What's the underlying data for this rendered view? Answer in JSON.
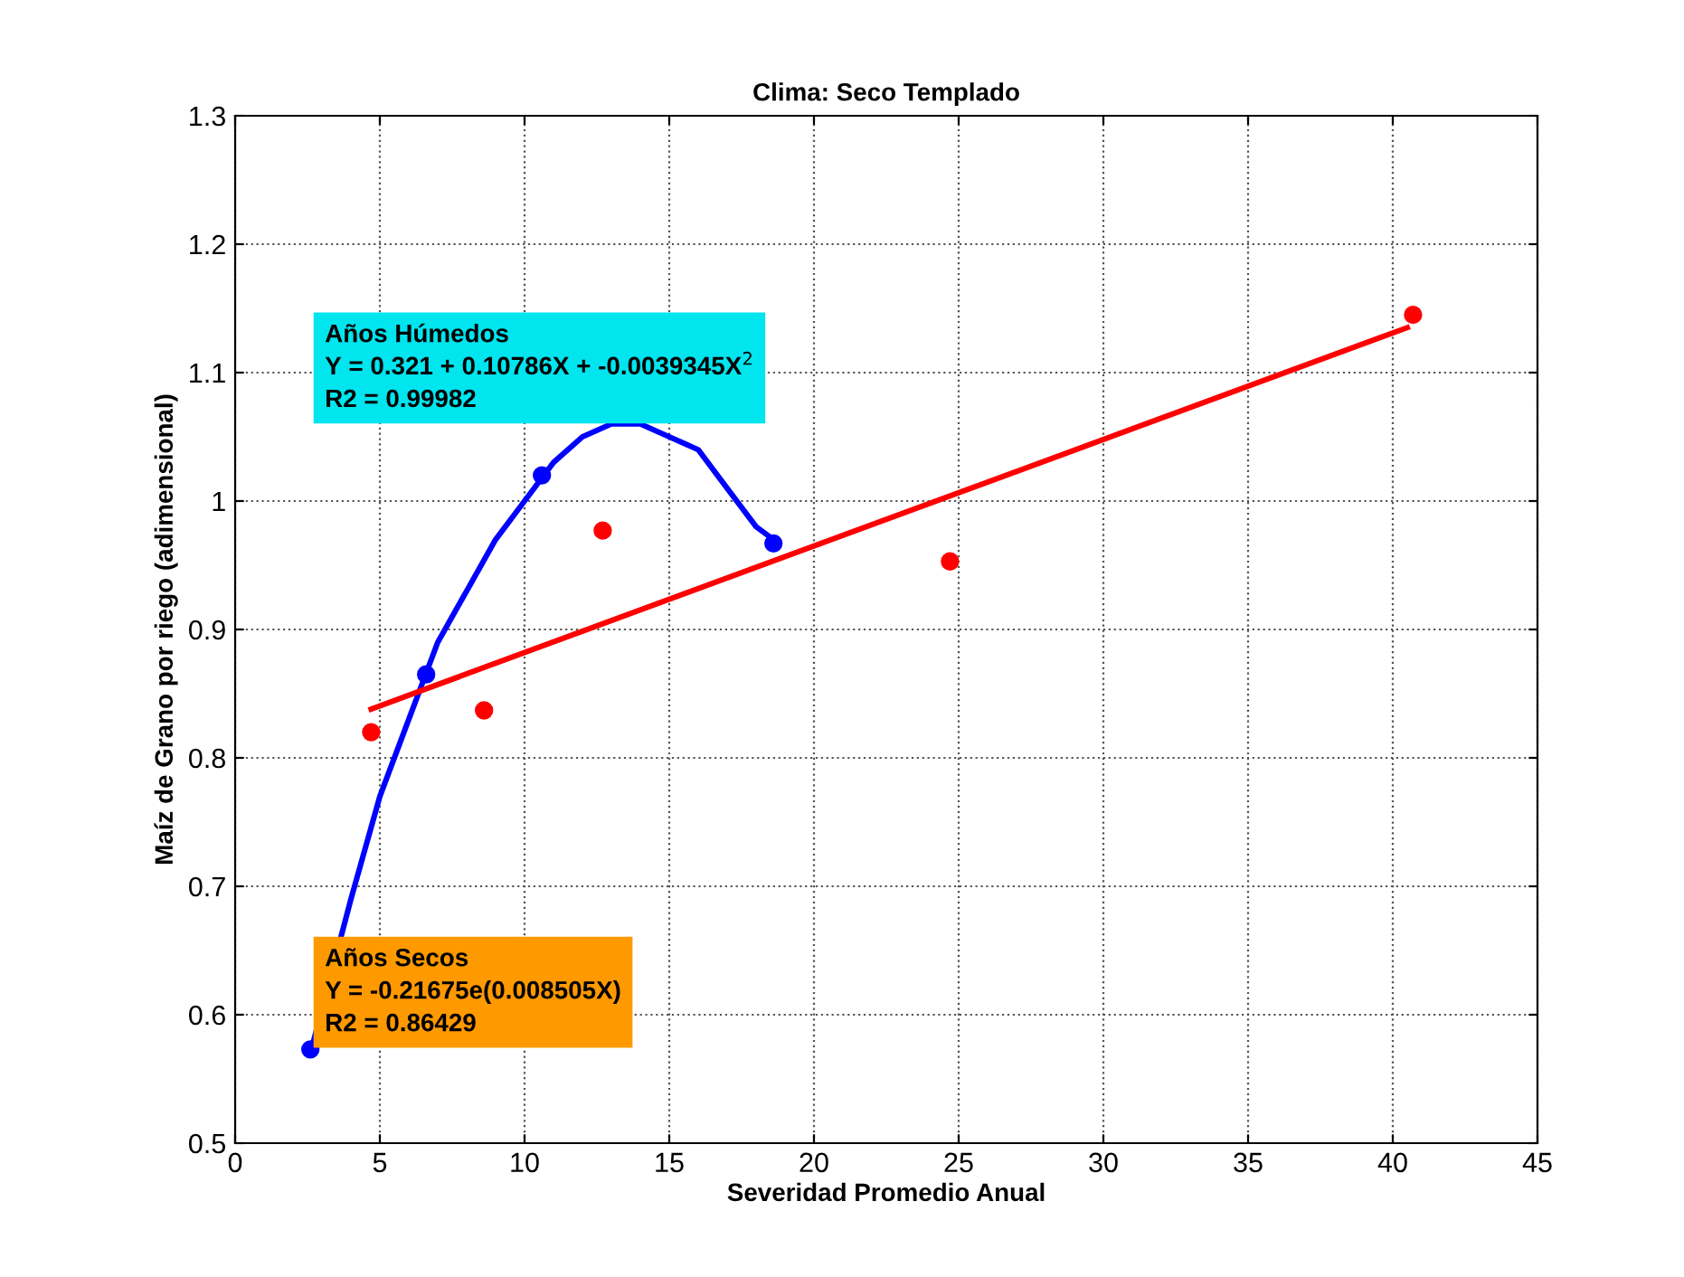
{
  "chart_data": {
    "type": "scatter",
    "title": "Clima: Seco Templado",
    "xlabel": "Severidad Promedio Anual",
    "ylabel": "Maíz de Grano por riego (adimensional)",
    "xlim": [
      0,
      45
    ],
    "xticks": [
      0,
      5,
      10,
      15,
      20,
      25,
      30,
      35,
      40,
      45
    ],
    "ylim": [
      0.5,
      1.3
    ],
    "yticks": [
      0.5,
      0.6,
      0.7,
      0.8,
      0.9,
      1,
      1.1,
      1.2,
      1.3
    ],
    "grid": true,
    "series": [
      {
        "color": "#0000ff",
        "marker": "circle",
        "x": [
          2.6,
          6.6,
          10.6,
          18.6
        ],
        "values": [
          0.573,
          0.865,
          1.02,
          0.967
        ]
      },
      {
        "color": "#ff0000",
        "marker": "circle",
        "x": [
          4.7,
          8.6,
          12.7,
          24.7,
          40.7
        ],
        "values": [
          0.82,
          0.837,
          0.977,
          0.953,
          1.145
        ]
      },
      {
        "type": "line",
        "color": "#0000ff",
        "marker": "none",
        "x": [
          2.6,
          4,
          5,
          6,
          7,
          8,
          9,
          10,
          11,
          12,
          13,
          14,
          15,
          16,
          17,
          18,
          18.6
        ],
        "values": [
          0.57,
          0.69,
          0.77,
          0.83,
          0.89,
          0.93,
          0.97,
          1.0,
          1.03,
          1.05,
          1.06,
          1.06,
          1.05,
          1.04,
          1.01,
          0.98,
          0.97
        ]
      },
      {
        "type": "line",
        "color": "#ff0000",
        "marker": "none",
        "x": [
          4.7,
          40.5
        ],
        "values": [
          0.838,
          1.135
        ]
      }
    ],
    "annotations": [
      "Años Húmedos\nY = 0.321 + 0.10786X + -0.0039345X$^{2}$\nR2 = 0.99982",
      "Años Secos\nY = -0.21675e(0.008505X)\nR2 = 0.86429"
    ]
  }
}
